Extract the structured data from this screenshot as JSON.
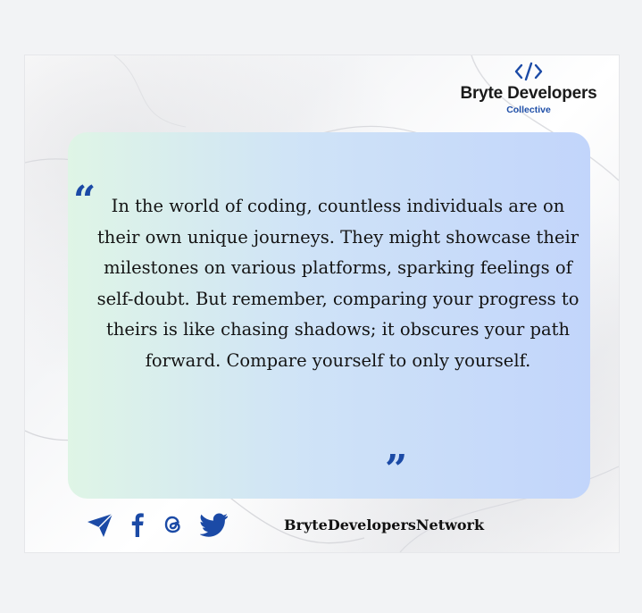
{
  "brand": {
    "name": "Bryte Developers",
    "subtitle": "Collective",
    "logo_icon": "code-brackets-icon",
    "accent_color": "#1b4aa6"
  },
  "quote": {
    "text": "In the world of coding, countless individuals are on their own unique journeys. They might showcase their milestones on various platforms, sparking feelings of self-doubt. But remember, comparing your progress to theirs is like chasing shadows; it obscures your path forward. Compare yourself to only yourself."
  },
  "footer": {
    "icons": [
      "telegram-icon",
      "facebook-icon",
      "threads-icon",
      "twitter-icon"
    ],
    "handle": "BryteDevelopersNetwork"
  }
}
